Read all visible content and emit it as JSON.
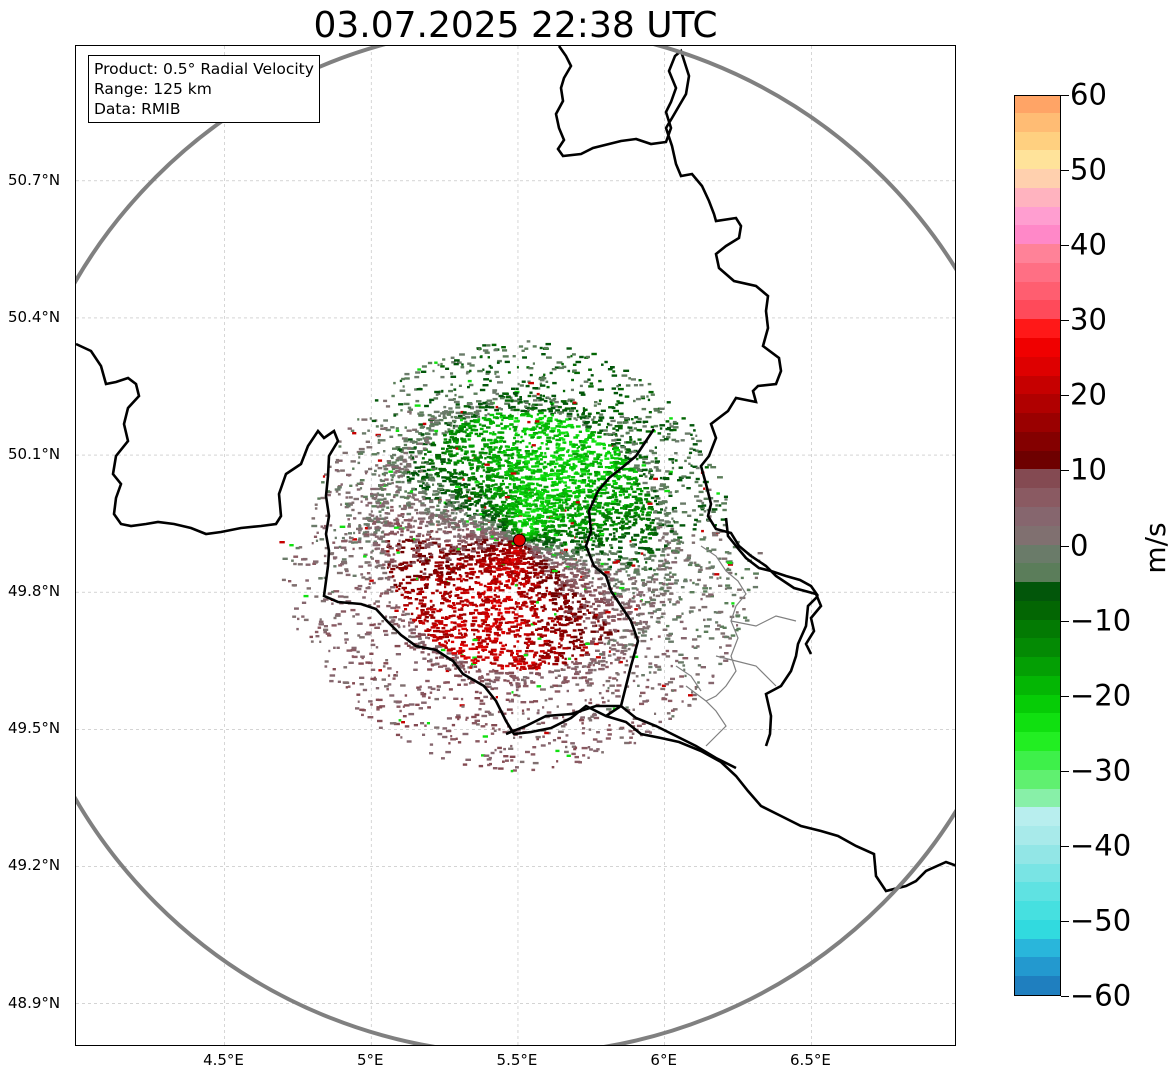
{
  "title": "03.07.2025 22:38 UTC",
  "infobox": {
    "product": "Product: 0.5° Radial Velocity",
    "range": "Range: 125 km",
    "source": "Data: RMIB"
  },
  "axes": {
    "lat_labels": [
      "50.7°N",
      "50.4°N",
      "50.1°N",
      "49.8°N",
      "49.5°N",
      "49.2°N",
      "48.9°N"
    ],
    "lat_values": [
      50.7,
      50.4,
      50.1,
      49.8,
      49.5,
      49.2,
      48.9
    ],
    "lon_labels": [
      "4.5°E",
      "5°E",
      "5.5°E",
      "6°E",
      "6.5°E"
    ],
    "lon_values": [
      4.5,
      5.0,
      5.5,
      6.0,
      6.5
    ]
  },
  "radar": {
    "site_lon": 5.505,
    "site_lat": 49.914,
    "range_km": 125,
    "site_color": "#e00000",
    "range_ring_color": "#808080"
  },
  "colorbar": {
    "unit": "m/s",
    "min": -60,
    "max": 60,
    "tick_values": [
      60,
      50,
      40,
      30,
      20,
      10,
      0,
      -10,
      -20,
      -30,
      -40,
      -50,
      -60
    ],
    "tick_labels": [
      "60",
      "50",
      "40",
      "30",
      "20",
      "10",
      "0",
      "−10",
      "−20",
      "−30",
      "−40",
      "−50",
      "−60"
    ],
    "colors": [
      "#1f7fbf",
      "#2399cf",
      "#29b6db",
      "#31dadf",
      "#46e0e0",
      "#5fe2e2",
      "#79e4e4",
      "#92e6e6",
      "#a8eaea",
      "#b8eeee",
      "#88f0a8",
      "#60f070",
      "#3ef04a",
      "#22ee22",
      "#10e010",
      "#06cc06",
      "#04b604",
      "#049f04",
      "#048a04",
      "#037a03",
      "#036603",
      "#02560a",
      "#5b7d5a",
      "#6a7b69",
      "#807070",
      "#86666e",
      "#8a5a62",
      "#844a52",
      "#6e0000",
      "#840000",
      "#9a0000",
      "#b00000",
      "#c60000",
      "#de0000",
      "#f00000",
      "#ff1818",
      "#ff4a5a",
      "#ff5e70",
      "#ff6f84",
      "#ff8298",
      "#ff88c8",
      "#ff9ed0",
      "#ffb3bf",
      "#ffd0ae",
      "#ffe39a",
      "#ffd080",
      "#ffbc74",
      "#ffa466"
    ]
  }
}
